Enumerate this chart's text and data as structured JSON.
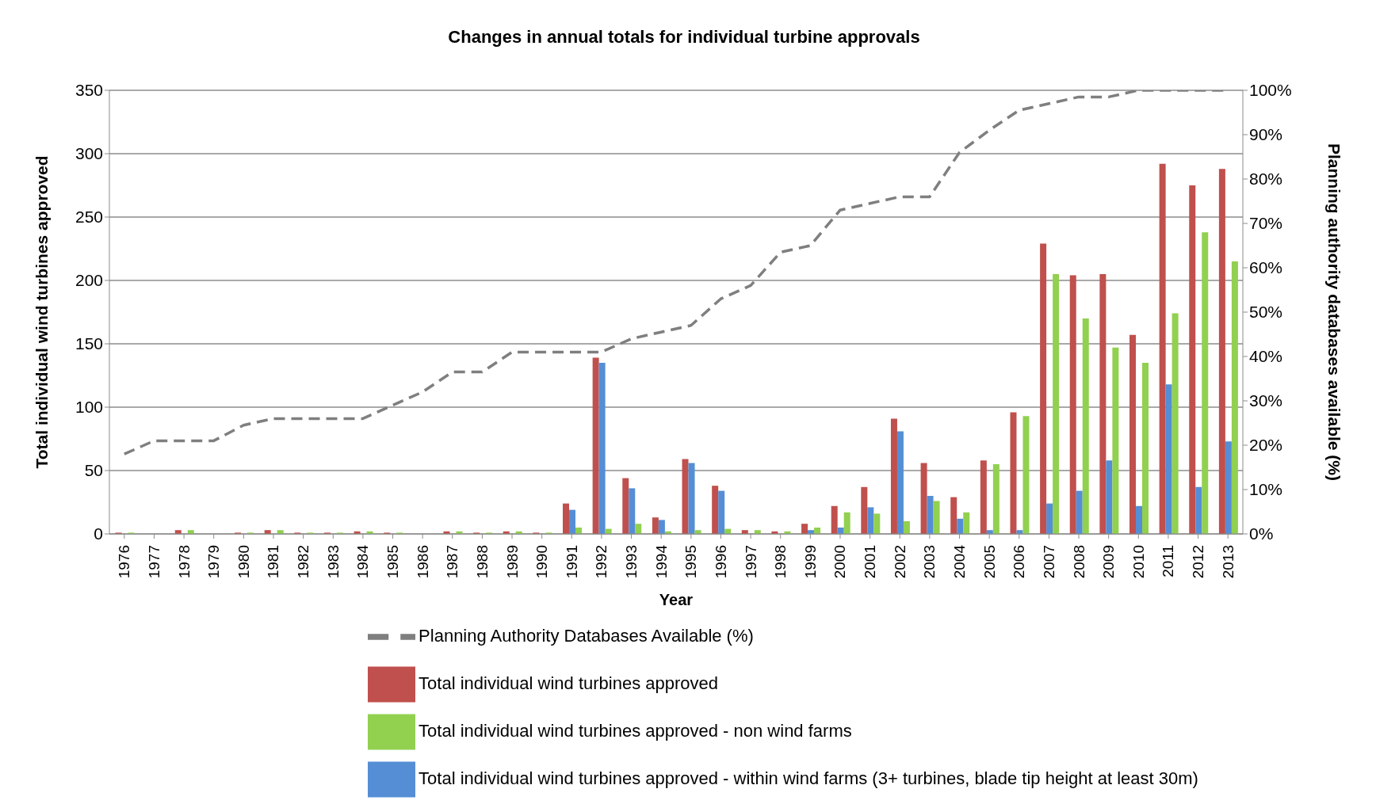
{
  "chart_data": {
    "type": "bar",
    "title": "Changes in annual totals for individual turbine approvals",
    "xlabel": "Year",
    "ylabel": "Total individual wind turbines approved",
    "y2label": "Planning authority databases available (%)",
    "categories": [
      "1976",
      "1977",
      "1978",
      "1979",
      "1980",
      "1981",
      "1982",
      "1983",
      "1984",
      "1985",
      "1986",
      "1987",
      "1988",
      "1989",
      "1990",
      "1991",
      "1992",
      "1993",
      "1994",
      "1995",
      "1996",
      "1997",
      "1998",
      "1999",
      "2000",
      "2001",
      "2002",
      "2003",
      "2004",
      "2005",
      "2006",
      "2007",
      "2008",
      "2009",
      "2010",
      "2011",
      "2012",
      "2013"
    ],
    "series": [
      {
        "name": "Total individual wind turbines approved",
        "color": "#c0504d",
        "values": [
          1,
          0,
          3,
          0,
          1,
          3,
          1,
          1,
          2,
          1,
          0,
          2,
          1,
          2,
          1,
          24,
          139,
          44,
          13,
          59,
          38,
          3,
          2,
          8,
          22,
          37,
          91,
          56,
          29,
          58,
          96,
          229,
          204,
          205,
          157,
          292,
          275,
          288
        ]
      },
      {
        "name": "Total individual wind turbines approved - within wind farms (3+ turbines, blade tip height at least 30m)",
        "color": "#558ed5",
        "values": [
          0,
          0,
          0,
          0,
          0,
          0,
          0,
          0,
          0,
          0,
          0,
          0,
          0,
          0,
          0,
          19,
          135,
          36,
          11,
          56,
          34,
          0,
          0,
          3,
          5,
          21,
          81,
          30,
          12,
          3,
          3,
          24,
          34,
          58,
          22,
          118,
          37,
          73
        ]
      },
      {
        "name": "Total individual wind turbines approved - non wind farms",
        "color": "#92d050",
        "values": [
          1,
          0,
          3,
          0,
          1,
          3,
          1,
          1,
          2,
          1,
          0,
          2,
          1,
          2,
          1,
          5,
          4,
          8,
          2,
          3,
          4,
          3,
          2,
          5,
          17,
          16,
          10,
          26,
          17,
          55,
          93,
          205,
          170,
          147,
          135,
          174,
          238,
          215
        ]
      },
      {
        "name": "Planning Authority Databases Available (%)",
        "type": "line",
        "axis": "y2",
        "color": "#7f7f7f",
        "line_style": "dashed",
        "values": [
          18,
          21,
          21,
          21,
          24.5,
          26,
          26,
          26,
          26,
          29,
          32,
          36.5,
          36.5,
          41,
          41,
          41,
          41,
          44,
          45.5,
          47,
          53,
          56,
          63.5,
          65,
          73,
          74.5,
          76,
          76,
          86,
          91,
          95.5,
          97,
          98.5,
          98.5,
          100,
          100,
          100,
          100
        ]
      }
    ],
    "ylim": [
      0,
      350
    ],
    "yticks": [
      0,
      50,
      100,
      150,
      200,
      250,
      300,
      350
    ],
    "y2lim": [
      0,
      100
    ],
    "y2ticks": [
      {
        "value": 0,
        "label": "0%"
      },
      {
        "value": 10,
        "label": "10%"
      },
      {
        "value": 20,
        "label": "20%"
      },
      {
        "value": 30,
        "label": "30%"
      },
      {
        "value": 40,
        "label": "40%"
      },
      {
        "value": 50,
        "label": "50%"
      },
      {
        "value": 60,
        "label": "60%"
      },
      {
        "value": 70,
        "label": "70%"
      },
      {
        "value": 80,
        "label": "80%"
      },
      {
        "value": 90,
        "label": "90%"
      },
      {
        "value": 100,
        "label": "100%"
      }
    ],
    "grid": "y",
    "legend": "bottom",
    "marker": "none"
  }
}
